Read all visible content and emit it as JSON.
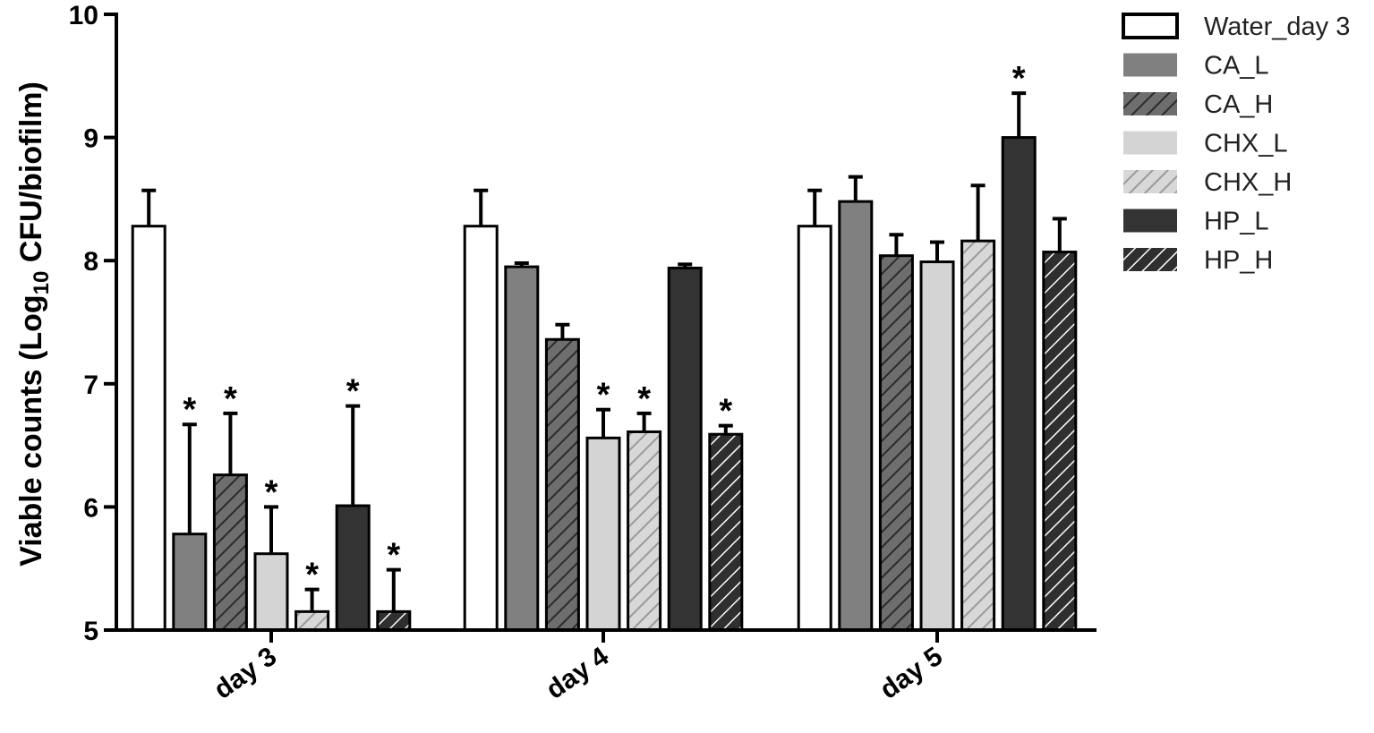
{
  "chart_data": {
    "type": "bar",
    "title": "",
    "xlabel": "",
    "ylabel_prefix": "Viable counts (Log",
    "ylabel_sub": "10",
    "ylabel_suffix": " CFU/biofilm)",
    "ylim": [
      5,
      10
    ],
    "yticks": [
      "5",
      "6",
      "7",
      "8",
      "9",
      "10"
    ],
    "categories": [
      "day 3",
      "day 4",
      "day 5"
    ],
    "legend_position": "top-right",
    "series": [
      {
        "name": "Water_day 3",
        "fill": "#ffffff",
        "hatch": false,
        "values": [
          8.28,
          8.28,
          8.28
        ],
        "errors": [
          0.29,
          0.29,
          0.29
        ],
        "significant": [
          false,
          false,
          false
        ]
      },
      {
        "name": "CA_L",
        "fill": "#808080",
        "hatch": false,
        "values": [
          5.78,
          7.95,
          8.48
        ],
        "errors": [
          0.89,
          0.03,
          0.2
        ],
        "significant": [
          true,
          false,
          false
        ]
      },
      {
        "name": "CA_H",
        "fill": "#6e6e6e",
        "hatch": true,
        "values": [
          6.26,
          7.36,
          8.04
        ],
        "errors": [
          0.5,
          0.12,
          0.17
        ],
        "significant": [
          true,
          false,
          false
        ]
      },
      {
        "name": "CHX_L",
        "fill": "#d4d4d4",
        "hatch": false,
        "values": [
          5.62,
          6.56,
          7.99
        ],
        "errors": [
          0.38,
          0.23,
          0.16
        ],
        "significant": [
          true,
          true,
          false
        ]
      },
      {
        "name": "CHX_H",
        "fill": "#d0d0d0",
        "hatch": true,
        "values": [
          5.15,
          6.61,
          8.16
        ],
        "errors": [
          0.18,
          0.15,
          0.45
        ],
        "significant": [
          true,
          true,
          false
        ]
      },
      {
        "name": "HP_L",
        "fill": "#333333",
        "hatch": false,
        "values": [
          6.01,
          7.94,
          9.0
        ],
        "errors": [
          0.81,
          0.03,
          0.36
        ],
        "significant": [
          true,
          false,
          true
        ]
      },
      {
        "name": "HP_H",
        "fill": "#2f2f2f",
        "hatch": true,
        "values": [
          5.15,
          6.59,
          8.07
        ],
        "errors": [
          0.34,
          0.07,
          0.27
        ],
        "significant": [
          true,
          true,
          false
        ]
      }
    ],
    "significance_marker": "*"
  }
}
